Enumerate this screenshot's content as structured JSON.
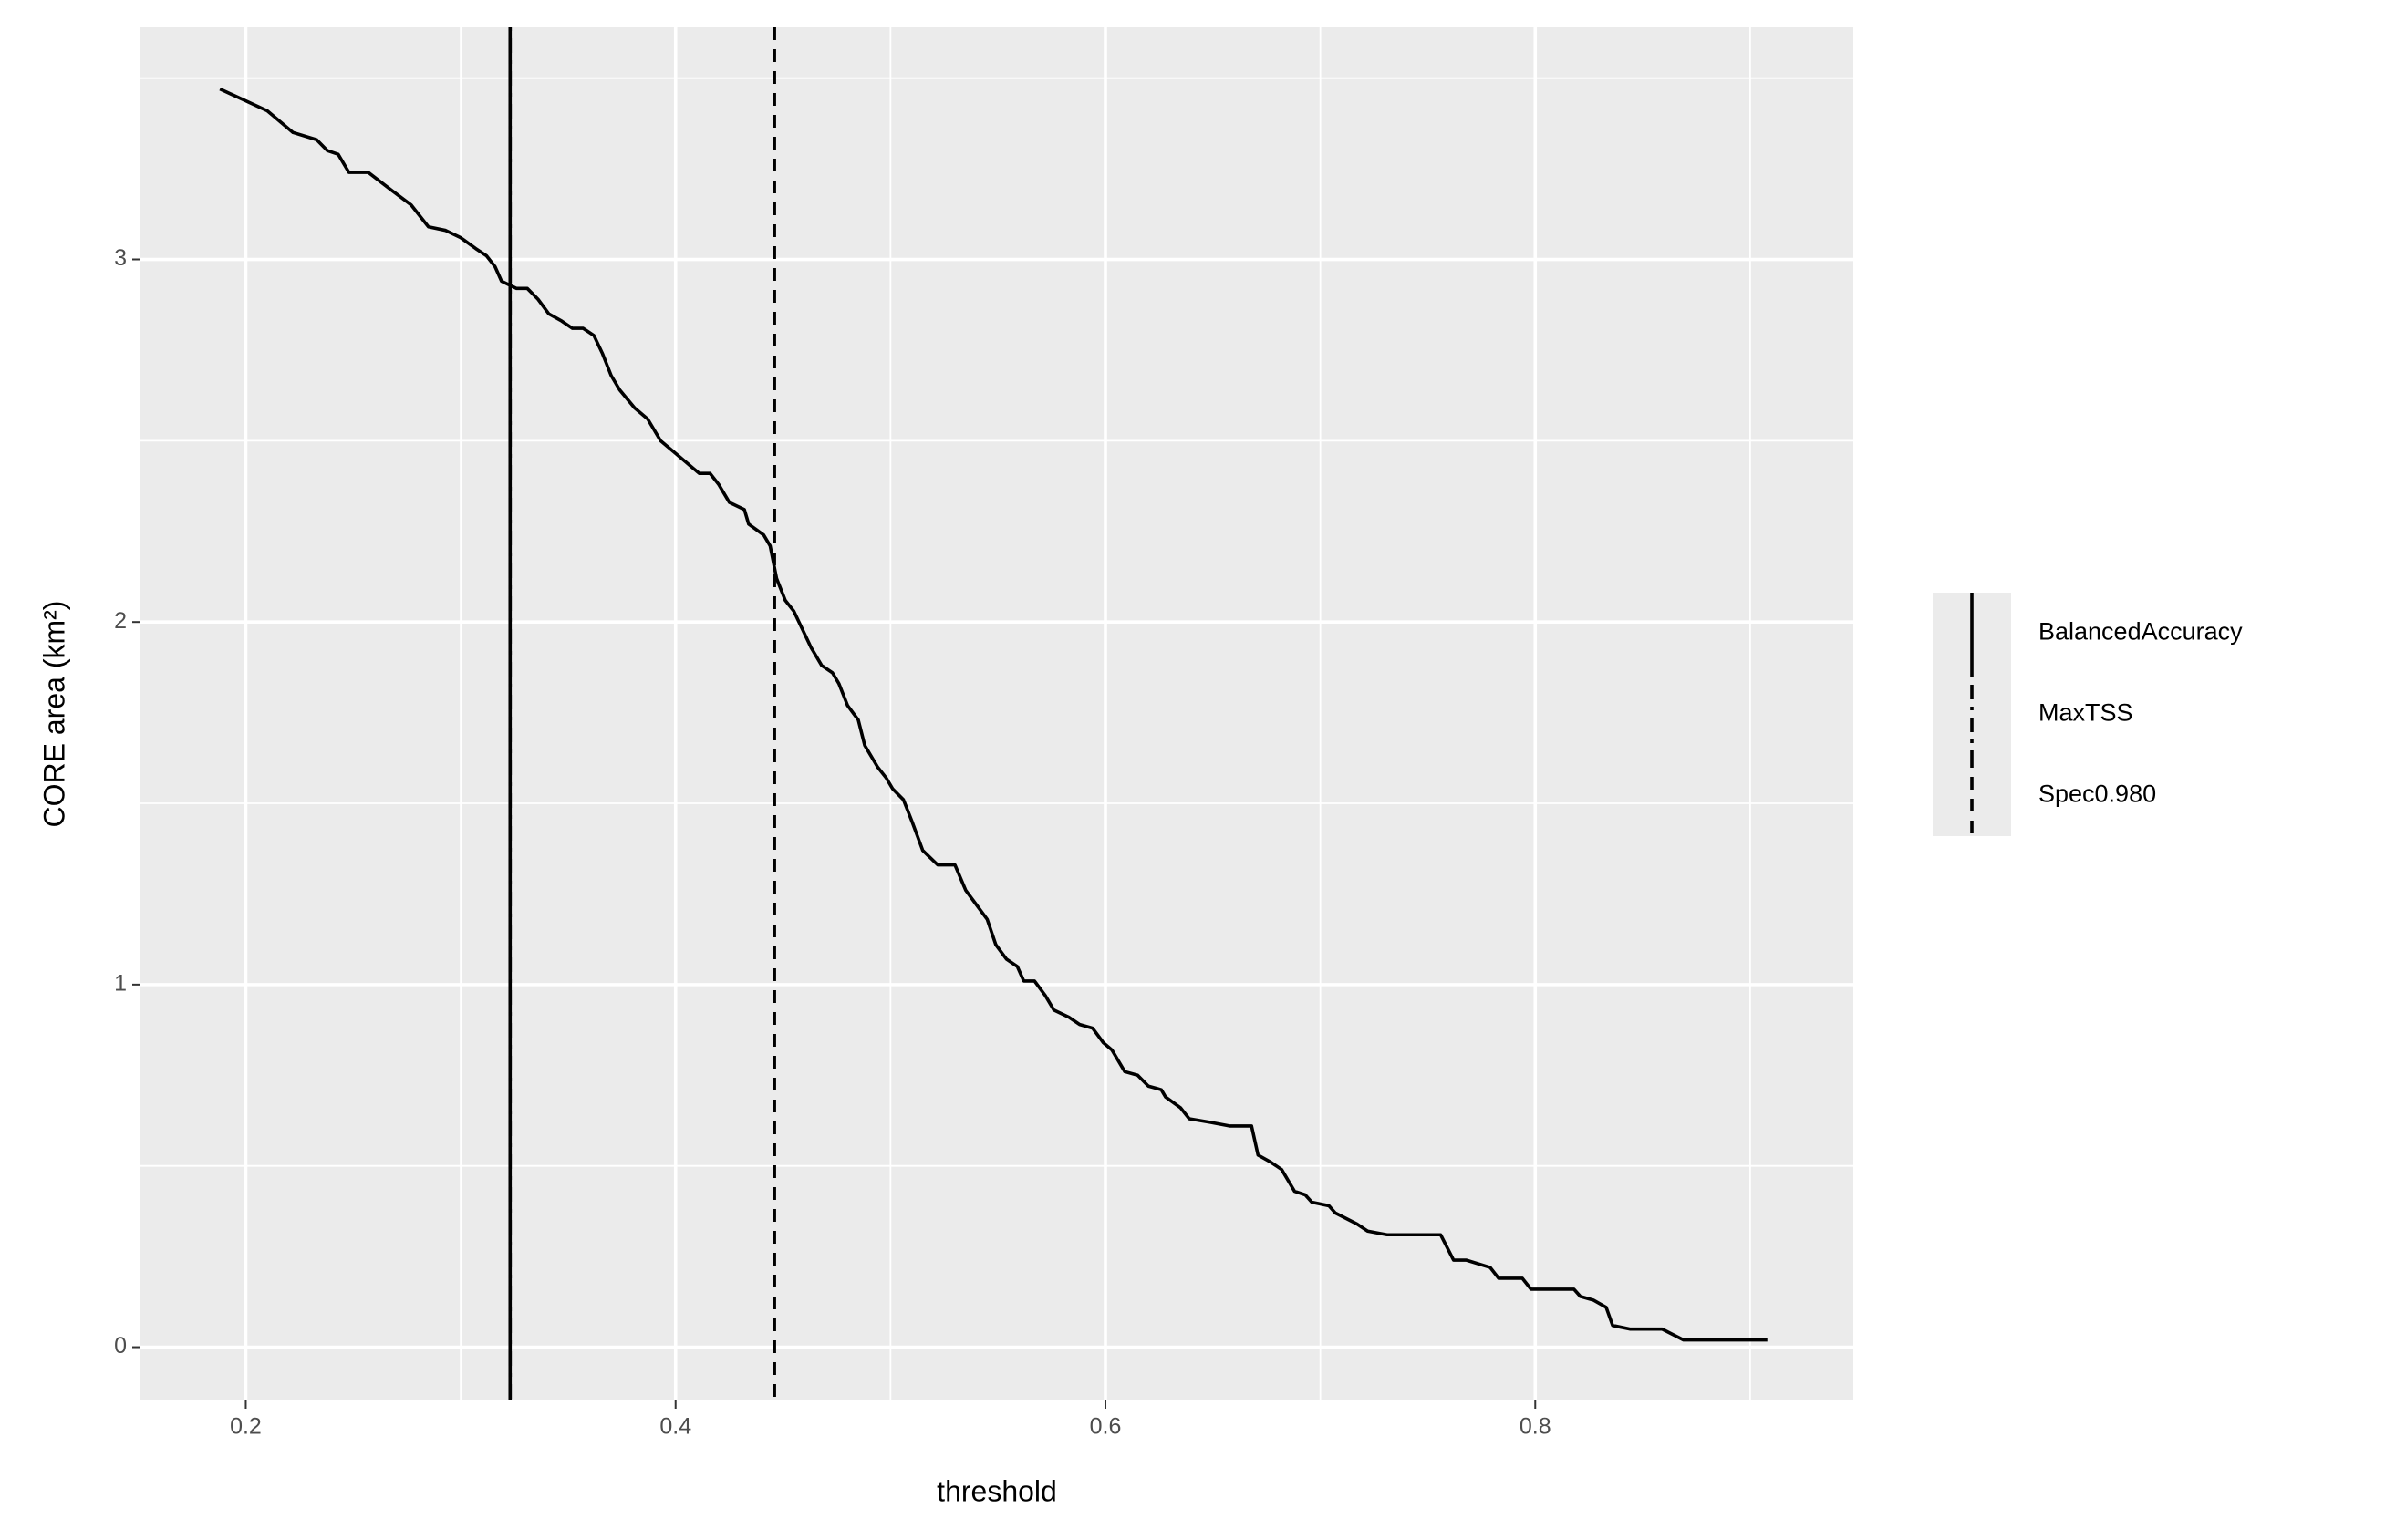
{
  "chart_data": {
    "type": "line",
    "x_label": "threshold",
    "y_label": "CORE area (km²)",
    "x": [
      0.188,
      0.199,
      0.21,
      0.222,
      0.233,
      0.238,
      0.243,
      0.248,
      0.257,
      0.268,
      0.277,
      0.285,
      0.293,
      0.3,
      0.307,
      0.312,
      0.316,
      0.319,
      0.326,
      0.331,
      0.336,
      0.341,
      0.347,
      0.352,
      0.357,
      0.362,
      0.366,
      0.37,
      0.374,
      0.381,
      0.387,
      0.393,
      0.401,
      0.407,
      0.411,
      0.416,
      0.42,
      0.425,
      0.432,
      0.434,
      0.441,
      0.444,
      0.447,
      0.451,
      0.455,
      0.459,
      0.463,
      0.468,
      0.473,
      0.476,
      0.48,
      0.485,
      0.488,
      0.494,
      0.498,
      0.501,
      0.506,
      0.51,
      0.515,
      0.522,
      0.53,
      0.535,
      0.54,
      0.545,
      0.549,
      0.554,
      0.559,
      0.562,
      0.567,
      0.572,
      0.576,
      0.583,
      0.588,
      0.594,
      0.599,
      0.603,
      0.609,
      0.615,
      0.62,
      0.626,
      0.628,
      0.635,
      0.639,
      0.649,
      0.658,
      0.668,
      0.671,
      0.677,
      0.682,
      0.688,
      0.693,
      0.696,
      0.704,
      0.707,
      0.717,
      0.722,
      0.731,
      0.756,
      0.762,
      0.768,
      0.779,
      0.783,
      0.794,
      0.798,
      0.818,
      0.821,
      0.827,
      0.833,
      0.836,
      0.844,
      0.859,
      0.869,
      0.908
    ],
    "values": [
      3.47,
      3.44,
      3.41,
      3.35,
      3.33,
      3.3,
      3.29,
      3.24,
      3.24,
      3.19,
      3.15,
      3.09,
      3.08,
      3.06,
      3.03,
      3.01,
      2.98,
      2.94,
      2.92,
      2.92,
      2.89,
      2.85,
      2.83,
      2.81,
      2.81,
      2.79,
      2.74,
      2.68,
      2.64,
      2.59,
      2.56,
      2.5,
      2.46,
      2.43,
      2.41,
      2.41,
      2.38,
      2.33,
      2.31,
      2.27,
      2.24,
      2.21,
      2.12,
      2.06,
      2.03,
      1.98,
      1.93,
      1.88,
      1.86,
      1.83,
      1.77,
      1.73,
      1.66,
      1.6,
      1.57,
      1.54,
      1.51,
      1.45,
      1.37,
      1.33,
      1.33,
      1.26,
      1.22,
      1.18,
      1.11,
      1.07,
      1.05,
      1.01,
      1.01,
      0.97,
      0.93,
      0.91,
      0.89,
      0.88,
      0.84,
      0.82,
      0.76,
      0.75,
      0.72,
      0.71,
      0.69,
      0.66,
      0.63,
      0.62,
      0.61,
      0.61,
      0.53,
      0.51,
      0.49,
      0.43,
      0.42,
      0.4,
      0.39,
      0.37,
      0.34,
      0.32,
      0.31,
      0.31,
      0.24,
      0.24,
      0.22,
      0.19,
      0.19,
      0.16,
      0.16,
      0.14,
      0.13,
      0.11,
      0.06,
      0.05,
      0.05,
      0.02,
      0.02
    ],
    "color": "#000000",
    "vlines": [
      {
        "name": "BalancedAccuracy",
        "x": 0.323,
        "linetype": "solid"
      },
      {
        "name": "MaxTSS",
        "x": 0.323,
        "linetype": "dotdash"
      },
      {
        "name": "Spec0.980",
        "x": 0.446,
        "linetype": "dashed"
      }
    ],
    "xlim": [
      0.151,
      0.948
    ],
    "xticks": [
      0.2,
      0.4,
      0.6,
      0.8
    ],
    "ylim": [
      -0.147,
      3.64
    ],
    "yticks": [
      0,
      1,
      2,
      3
    ],
    "grid": true,
    "legend_position": "right"
  }
}
